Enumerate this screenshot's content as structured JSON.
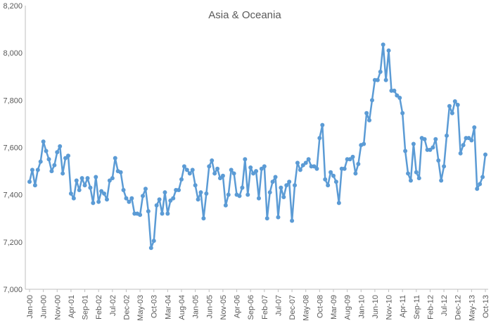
{
  "chart_data": {
    "type": "line",
    "title": "Asia & Oceania",
    "xlabel": "",
    "ylabel": "",
    "ylim": [
      7000,
      8200
    ],
    "y_ticks": [
      7000,
      7200,
      7400,
      7600,
      7800,
      8000,
      8200
    ],
    "y_tick_labels": [
      "7,000",
      "7,200",
      "7,400",
      "7,600",
      "7,800",
      "8,000",
      "8,200"
    ],
    "x_start": "2000-01",
    "x_end": "2013-10",
    "x_tick_labels": [
      "Jan-00",
      "Jun-00",
      "Nov-00",
      "Apr-01",
      "Sep-01",
      "Feb-02",
      "Jul-02",
      "Dec-02",
      "May-03",
      "Oct-03",
      "Mar-04",
      "Aug-04",
      "Jan-05",
      "Jun-05",
      "Nov-05",
      "Apr-06",
      "Sep-06",
      "Feb-07",
      "Jul-07",
      "Dec-07",
      "May-08",
      "Oct-08",
      "Mar-09",
      "Aug-09",
      "Jan-10",
      "Jun-10",
      "Nov-10",
      "Apr-11",
      "Sep-11",
      "Feb-12",
      "Jul-12",
      "Dec-12",
      "May-13",
      "Oct-13"
    ],
    "grid": false,
    "legend": "none",
    "series": [
      {
        "color": "#5B9BD5",
        "values": [
          7455,
          7505,
          7440,
          7505,
          7540,
          7625,
          7585,
          7550,
          7500,
          7525,
          7580,
          7605,
          7490,
          7555,
          7565,
          7405,
          7385,
          7460,
          7420,
          7470,
          7440,
          7470,
          7430,
          7365,
          7475,
          7370,
          7415,
          7405,
          7380,
          7460,
          7470,
          7555,
          7500,
          7495,
          7420,
          7385,
          7370,
          7385,
          7320,
          7320,
          7315,
          7395,
          7425,
          7330,
          7175,
          7205,
          7355,
          7380,
          7320,
          7410,
          7320,
          7375,
          7385,
          7420,
          7420,
          7465,
          7520,
          7505,
          7490,
          7505,
          7440,
          7380,
          7410,
          7300,
          7405,
          7520,
          7545,
          7490,
          7510,
          7470,
          7480,
          7355,
          7400,
          7505,
          7490,
          7400,
          7395,
          7430,
          7550,
          7400,
          7515,
          7490,
          7500,
          7385,
          7510,
          7520,
          7300,
          7410,
          7455,
          7475,
          7305,
          7430,
          7390,
          7440,
          7455,
          7290,
          7440,
          7535,
          7505,
          7525,
          7535,
          7550,
          7520,
          7520,
          7510,
          7640,
          7695,
          7465,
          7440,
          7495,
          7480,
          7455,
          7365,
          7510,
          7510,
          7550,
          7550,
          7560,
          7490,
          7530,
          7610,
          7615,
          7745,
          7715,
          7800,
          7885,
          7885,
          7920,
          8035,
          7885,
          8010,
          7840,
          7840,
          7820,
          7810,
          7745,
          7585,
          7490,
          7460,
          7615,
          7495,
          7470,
          7640,
          7635,
          7590,
          7590,
          7600,
          7635,
          7545,
          7460,
          7520,
          7650,
          7775,
          7745,
          7795,
          7780,
          7575,
          7610,
          7640,
          7640,
          7630,
          7685,
          7425,
          7445,
          7475,
          7570
        ]
      }
    ]
  }
}
